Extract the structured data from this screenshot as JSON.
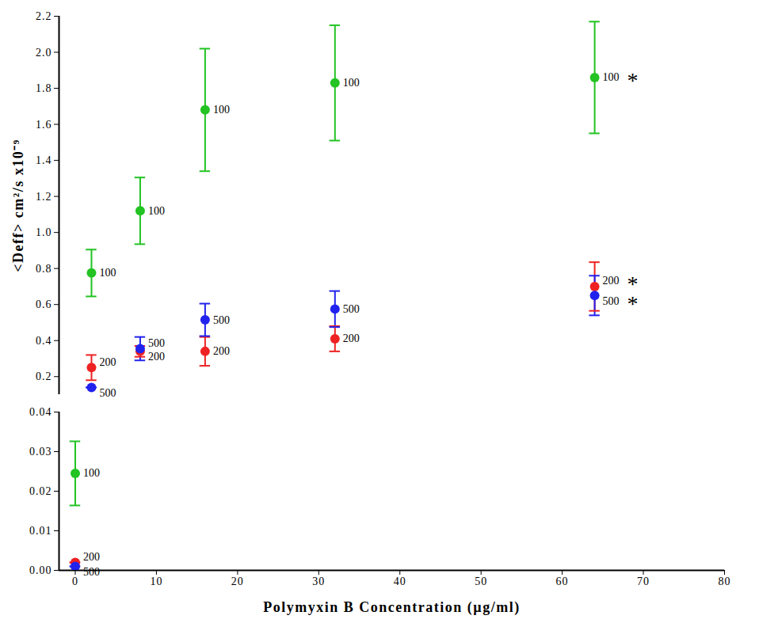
{
  "chart_data": [
    {
      "type": "scatter",
      "ylabel": "<Deff> cm²/s x10⁻⁹",
      "xlim": [
        -2,
        80
      ],
      "ylim": [
        0.1,
        2.2
      ],
      "yticks": [
        {
          "value": 0.2,
          "label": "0.2"
        },
        {
          "value": 0.4,
          "label": "0.4"
        },
        {
          "value": 0.6,
          "label": "0.6"
        },
        {
          "value": 0.8,
          "label": "0.8"
        },
        {
          "value": 1.0,
          "label": "1.0"
        },
        {
          "value": 1.2,
          "label": "1.2"
        },
        {
          "value": 1.4,
          "label": "1.4"
        },
        {
          "value": 1.6,
          "label": "1.6"
        },
        {
          "value": 1.8,
          "label": "1.8"
        },
        {
          "value": 2.0,
          "label": "2.0"
        },
        {
          "value": 2.2,
          "label": "2.2"
        }
      ],
      "tick_labels": "y",
      "series": [
        {
          "name": "100",
          "color": "#22c322",
          "marker": "circle",
          "x": [
            2,
            8,
            16,
            32,
            64
          ],
          "values": [
            0.775,
            1.12,
            1.68,
            1.83,
            1.86
          ],
          "errors": [
            0.13,
            0.185,
            0.34,
            0.32,
            0.31
          ],
          "significance": [
            null,
            null,
            null,
            null,
            "*"
          ]
        },
        {
          "name": "200",
          "color": "#ee2222",
          "marker": "circle",
          "x": [
            2,
            8,
            16,
            32,
            64
          ],
          "values": [
            0.25,
            0.34,
            0.34,
            0.41,
            0.7
          ],
          "errors": [
            0.07,
            0.03,
            0.08,
            0.07,
            0.135
          ],
          "significance": [
            null,
            null,
            null,
            null,
            "*"
          ]
        },
        {
          "name": "500",
          "color": "#2222ee",
          "marker": "circle",
          "x": [
            2,
            8,
            16,
            32,
            64
          ],
          "values": [
            0.14,
            0.355,
            0.515,
            0.575,
            0.65
          ],
          "errors": [
            0,
            0.065,
            0.09,
            0.1,
            0.11
          ],
          "significance": [
            null,
            null,
            null,
            null,
            "*"
          ]
        }
      ]
    },
    {
      "type": "scatter",
      "xlabel": "Polymyxin B Concentration (µg/ml)",
      "xlim": [
        -2,
        80
      ],
      "xticks": [
        0,
        10,
        20,
        30,
        40,
        50,
        60,
        70,
        80
      ],
      "ylim": [
        0,
        0.04
      ],
      "yticks": [
        {
          "value": 0,
          "label": "0.00"
        },
        {
          "value": 0.01,
          "label": "0.01"
        },
        {
          "value": 0.02,
          "label": "0.02"
        },
        {
          "value": 0.03,
          "label": "0.03"
        },
        {
          "value": 0.04,
          "label": "0.04"
        }
      ],
      "series": [
        {
          "name": "100",
          "color": "#22c322",
          "marker": "circle",
          "x": [
            0
          ],
          "values": [
            0.0245
          ],
          "errors": [
            0.0081
          ]
        },
        {
          "name": "200",
          "color": "#ee2222",
          "marker": "circle",
          "x": [
            0
          ],
          "values": [
            0.002
          ],
          "errors": [
            0
          ]
        },
        {
          "name": "500",
          "color": "#2222ee",
          "marker": "circle",
          "x": [
            0
          ],
          "values": [
            0.001
          ],
          "errors": [
            0
          ]
        }
      ]
    }
  ]
}
